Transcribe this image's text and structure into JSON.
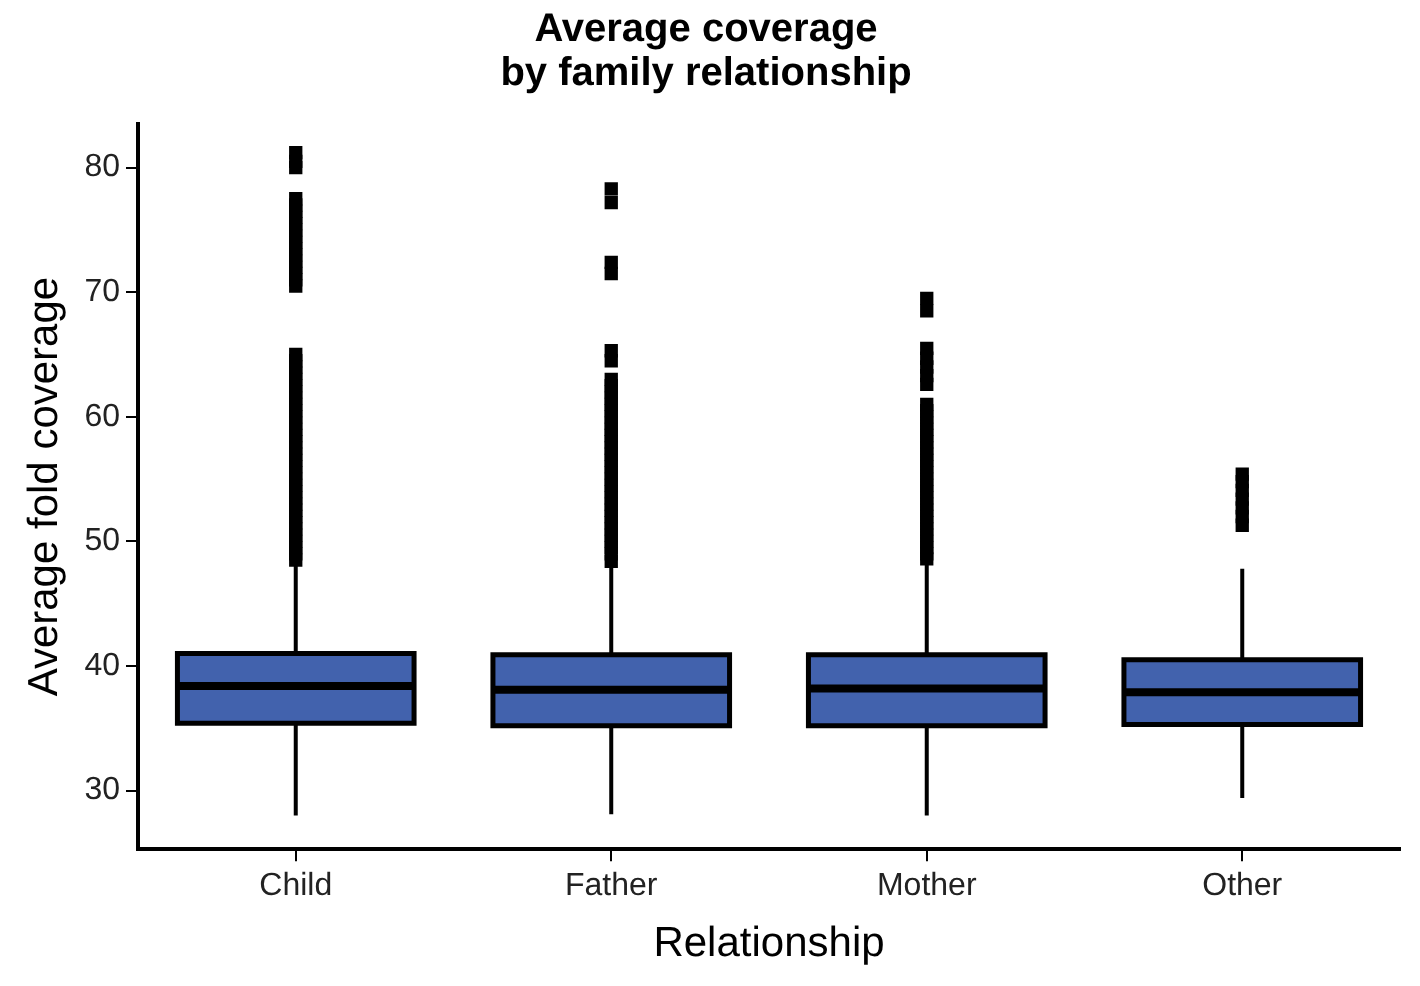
{
  "chart_data": {
    "type": "box",
    "title": "Average coverage\nby family relationship",
    "xlabel": "Relationship",
    "ylabel": "Average fold coverage",
    "categories": [
      "Child",
      "Father",
      "Mother",
      "Other"
    ],
    "color": "#4262ad",
    "boxes": [
      {
        "low": 28.0,
        "q1": 35.4,
        "median": 38.4,
        "q3": 41.0,
        "high": 48.2,
        "outliers": [
          48.5,
          49,
          49.5,
          50,
          50.5,
          51,
          51.5,
          52,
          52.5,
          53,
          53.5,
          54,
          54.5,
          55,
          55.5,
          56,
          56.5,
          57,
          57.5,
          58,
          58.5,
          59,
          59.5,
          60,
          60.5,
          61,
          61.5,
          62,
          62.5,
          63,
          63.5,
          64,
          64.5,
          65,
          70.5,
          71,
          71.5,
          72,
          72.5,
          73,
          73.5,
          74,
          74.5,
          75,
          75.5,
          76,
          76.5,
          77,
          77.5,
          80,
          80.5,
          81.2
        ]
      },
      {
        "low": 28.1,
        "q1": 35.2,
        "median": 38.1,
        "q3": 40.9,
        "high": 48.0,
        "outliers": [
          48.4,
          49,
          49.5,
          50,
          50.5,
          51,
          51.5,
          52,
          52.5,
          53,
          53.5,
          54,
          54.5,
          55,
          55.5,
          56,
          56.5,
          57,
          57.5,
          58,
          58.5,
          59,
          59.5,
          60,
          60.5,
          61,
          61.5,
          62,
          62.5,
          63,
          64.5,
          65.3,
          71.5,
          72.4,
          77.2,
          78.3
        ]
      },
      {
        "low": 28.0,
        "q1": 35.2,
        "median": 38.2,
        "q3": 40.9,
        "high": 48.2,
        "outliers": [
          48.6,
          49,
          49.5,
          50,
          50.5,
          51,
          51.5,
          52,
          52.5,
          53,
          53.5,
          54,
          54.5,
          55,
          55.5,
          56,
          56.5,
          57,
          57.5,
          58,
          58.5,
          59,
          59.5,
          60,
          60.5,
          61,
          62.6,
          63.3,
          64,
          64.7,
          65.5,
          68.5,
          69.5
        ]
      },
      {
        "low": 29.4,
        "q1": 35.3,
        "median": 37.9,
        "q3": 40.5,
        "high": 47.8,
        "outliers": [
          51.3,
          52,
          52.7,
          53.4,
          54.1,
          54.8,
          55.4
        ]
      }
    ],
    "ylim": [
      25.3,
      83.5
    ],
    "yticks": [
      30,
      40,
      50,
      60,
      70,
      80
    ],
    "grid": false,
    "legend": false
  }
}
